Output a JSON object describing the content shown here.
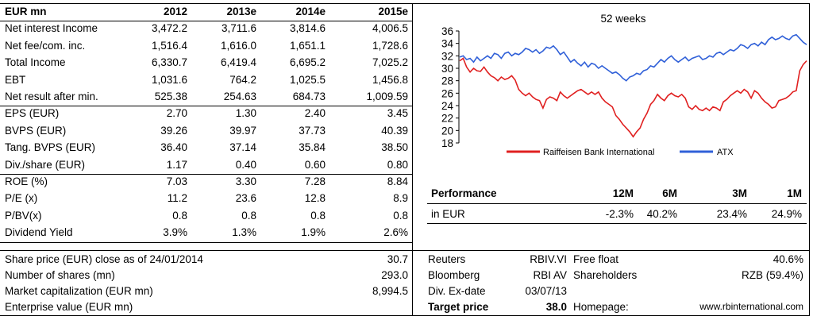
{
  "financials": {
    "header": [
      "EUR mn",
      "2012",
      "2013e",
      "2014e",
      "2015e"
    ],
    "groups": [
      [
        [
          "Net interest Income",
          "3,472.2",
          "3,711.6",
          "3,814.6",
          "4,006.5"
        ],
        [
          "Net fee/com. inc.",
          "1,516.4",
          "1,616.0",
          "1,651.1",
          "1,728.6"
        ],
        [
          "Total Income",
          "6,330.7",
          "6,419.4",
          "6,695.2",
          "7,025.2"
        ],
        [
          "EBT",
          "1,031.6",
          "764.2",
          "1,025.5",
          "1,456.8"
        ],
        [
          "Net result after min.",
          "525.38",
          "254.63",
          "684.73",
          "1,009.59"
        ]
      ],
      [
        [
          "EPS (EUR)",
          "2.70",
          "1.30",
          "2.40",
          "3.45"
        ],
        [
          "BVPS (EUR)",
          "39.26",
          "39.97",
          "37.73",
          "40.39"
        ],
        [
          "Tang. BVPS (EUR)",
          "36.40",
          "37.14",
          "35.84",
          "38.50"
        ],
        [
          "Div./share (EUR)",
          "1.17",
          "0.40",
          "0.60",
          "0.80"
        ]
      ],
      [
        [
          "ROE (%)",
          "7.03",
          "3.30",
          "7.28",
          "8.84"
        ],
        [
          "P/E (x)",
          "11.2",
          "23.6",
          "12.8",
          "8.9"
        ],
        [
          "P/BV(x)",
          "0.8",
          "0.8",
          "0.8",
          "0.8"
        ],
        [
          "Dividend Yield",
          "3.9%",
          "1.3%",
          "1.9%",
          "2.6%"
        ]
      ]
    ]
  },
  "market": [
    [
      "Share price (EUR) close as of 24/01/2014",
      "30.7"
    ],
    [
      "Number of shares (mn)",
      "293.0"
    ],
    [
      "Market capitalization (EUR mn)",
      "8,994.5"
    ],
    [
      "Enterprise value (EUR mn)",
      ""
    ]
  ],
  "info": [
    [
      "Reuters",
      "RBIV.VI",
      "Free float",
      "40.6%"
    ],
    [
      "Bloomberg",
      "RBI AV",
      "Shareholders",
      "RZB (59.4%)"
    ],
    [
      "Div. Ex-date",
      "03/07/13",
      "",
      ""
    ],
    [
      "Target price",
      "38.0",
      "Homepage:",
      "www.rbinternational.com"
    ]
  ],
  "performance": {
    "title": "Performance",
    "headers": [
      "12M",
      "6M",
      "3M",
      "1M"
    ],
    "row_label": "in EUR",
    "values": [
      "-2.3%",
      "40.2%",
      "23.4%",
      "24.9%"
    ]
  },
  "chart_data": {
    "type": "line",
    "title": "52 weeks",
    "ylim": [
      18,
      36
    ],
    "yticks": [
      18,
      20,
      22,
      24,
      26,
      28,
      30,
      32,
      34,
      36
    ],
    "series": [
      {
        "name": "Raiffeisen Bank International",
        "color": "#e02020",
        "values": [
          31.2,
          31.6,
          30.2,
          29.4,
          30.0,
          29.6,
          29.5,
          30.2,
          29.4,
          28.8,
          28.5,
          28.0,
          28.6,
          28.2,
          28.4,
          28.8,
          28.1,
          26.6,
          26.0,
          25.6,
          26.0,
          25.4,
          25.0,
          24.8,
          23.6,
          25.0,
          25.4,
          25.2,
          24.8,
          26.2,
          25.6,
          25.2,
          25.6,
          26.0,
          26.4,
          26.6,
          26.2,
          25.8,
          26.2,
          25.8,
          26.2,
          25.2,
          24.6,
          24.2,
          23.8,
          22.4,
          21.8,
          21.0,
          20.4,
          19.8,
          19.0,
          19.8,
          20.4,
          21.8,
          22.8,
          24.2,
          24.8,
          25.8,
          25.2,
          24.8,
          25.6,
          26.0,
          25.6,
          25.4,
          25.8,
          25.2,
          23.8,
          23.4,
          24.0,
          23.4,
          23.2,
          23.6,
          23.2,
          23.8,
          23.6,
          23.2,
          24.6,
          25.0,
          25.6,
          26.0,
          26.4,
          26.0,
          26.6,
          26.2,
          25.2,
          26.4,
          26.0,
          25.2,
          24.6,
          24.2,
          23.6,
          23.8,
          24.8,
          25.0,
          25.2,
          25.6,
          26.2,
          26.4,
          29.6,
          30.6,
          31.2
        ]
      },
      {
        "name": "ATX",
        "color": "#3060d8",
        "values": [
          31.8,
          32.0,
          31.4,
          31.6,
          31.0,
          31.8,
          31.2,
          31.6,
          32.0,
          31.6,
          32.4,
          32.2,
          31.6,
          32.4,
          32.6,
          32.0,
          32.4,
          32.2,
          32.6,
          33.2,
          33.0,
          32.6,
          33.0,
          32.4,
          32.8,
          33.4,
          33.2,
          33.6,
          33.0,
          32.2,
          32.6,
          31.8,
          31.0,
          31.4,
          30.8,
          30.4,
          31.0,
          30.2,
          30.8,
          30.6,
          30.0,
          30.4,
          30.0,
          29.6,
          29.2,
          29.4,
          29.0,
          28.4,
          28.0,
          28.6,
          28.8,
          29.2,
          29.0,
          29.6,
          29.8,
          30.4,
          30.2,
          30.8,
          31.4,
          31.0,
          31.6,
          32.0,
          31.4,
          31.0,
          31.4,
          31.8,
          31.2,
          31.6,
          31.8,
          32.0,
          31.4,
          31.6,
          32.0,
          31.8,
          32.4,
          32.6,
          32.2,
          32.6,
          33.0,
          32.8,
          33.2,
          33.8,
          33.6,
          33.2,
          33.8,
          34.0,
          33.6,
          34.2,
          33.8,
          34.6,
          35.0,
          34.6,
          34.8,
          35.2,
          34.8,
          34.6,
          35.2,
          35.4,
          34.8,
          34.2,
          33.8
        ]
      }
    ]
  }
}
